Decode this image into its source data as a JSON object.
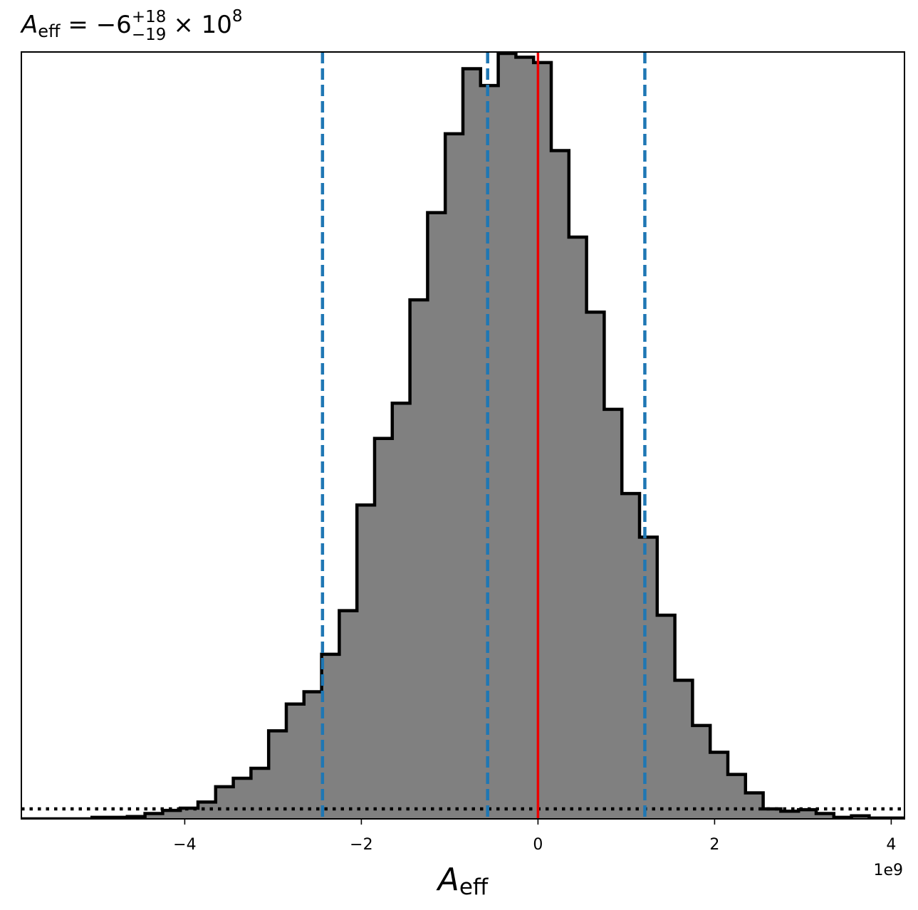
{
  "chart_data": {
    "type": "histogram",
    "title": {
      "lhs_symbol": "A",
      "lhs_subscript": "eff",
      "rhs_value": "−6",
      "rhs_sup": "+18",
      "rhs_sub": "−19",
      "rhs_factor": "× 10",
      "rhs_exp": "8"
    },
    "xlabel": {
      "symbol": "A",
      "subscript": "eff"
    },
    "x_offset_label": "1e9",
    "xlim": [
      -5.85,
      4.15
    ],
    "ylim": [
      0,
      1
    ],
    "x_scale_unit": 1000000000.0,
    "xticks": [
      {
        "value": -4,
        "label": "−4"
      },
      {
        "value": -2,
        "label": "−2"
      },
      {
        "value": 0,
        "label": "0"
      },
      {
        "value": 2,
        "label": "2"
      },
      {
        "value": 4,
        "label": "4"
      }
    ],
    "bin_edges": [
      -5.85,
      -5.65,
      -5.45,
      -5.25,
      -5.05,
      -4.85,
      -4.65,
      -4.45,
      -4.25,
      -4.05,
      -3.85,
      -3.65,
      -3.45,
      -3.25,
      -3.05,
      -2.85,
      -2.65,
      -2.45,
      -2.25,
      -2.05,
      -1.85,
      -1.65,
      -1.45,
      -1.25,
      -1.05,
      -0.85,
      -0.65,
      -0.45,
      -0.25,
      -0.05,
      0.15,
      0.35,
      0.55,
      0.75,
      0.95,
      1.15,
      1.35,
      1.55,
      1.75,
      1.95,
      2.15,
      2.35,
      2.55,
      2.75,
      2.95,
      3.15,
      3.35,
      3.55,
      3.75,
      3.95,
      4.15
    ],
    "counts": [
      0,
      0,
      0,
      0,
      0.002,
      0.002,
      0.003,
      0.007,
      0.011,
      0.014,
      0.022,
      0.042,
      0.053,
      0.066,
      0.115,
      0.15,
      0.166,
      0.215,
      0.272,
      0.41,
      0.497,
      0.543,
      0.678,
      0.792,
      0.895,
      0.98,
      0.958,
      1.0,
      0.995,
      0.988,
      0.873,
      0.76,
      0.662,
      0.535,
      0.425,
      0.368,
      0.266,
      0.181,
      0.122,
      0.087,
      0.058,
      0.034,
      0.013,
      0.01,
      0.012,
      0.007,
      0.002,
      0.004,
      0.001,
      0.001
    ],
    "hist_fill": "#808080",
    "hist_edge": "#000000",
    "quantile_lines": [
      -2.44,
      -0.57,
      1.21
    ],
    "quantile_color": "#1f77b4",
    "truth_value": 0,
    "truth_color": "#ee0000",
    "prior_level": 0.013,
    "prior_color": "#000000",
    "grid": false
  }
}
